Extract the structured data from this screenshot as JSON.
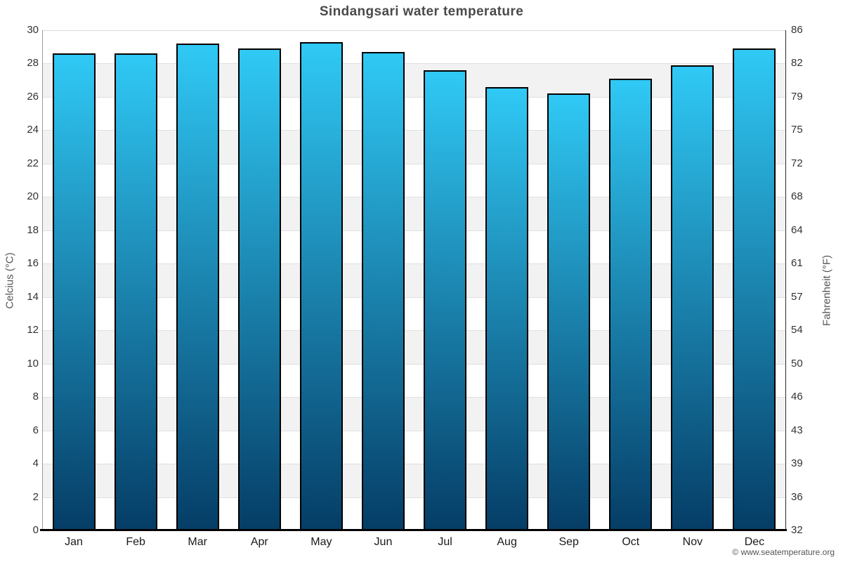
{
  "title": "Sindangsari water temperature",
  "watermark": "© www.seatemperature.org",
  "chart_data": {
    "type": "bar",
    "title": "Sindangsari water temperature",
    "categories": [
      "Jan",
      "Feb",
      "Mar",
      "Apr",
      "May",
      "Jun",
      "Jul",
      "Aug",
      "Sep",
      "Oct",
      "Nov",
      "Dec"
    ],
    "values": [
      28.6,
      28.6,
      29.2,
      28.9,
      29.3,
      28.7,
      27.6,
      26.6,
      26.2,
      27.1,
      27.9,
      28.9
    ],
    "xlabel": "",
    "ylabel_left": "Celcius (°C)",
    "ylabel_right": "Fahrenheit (°F)",
    "ylim_left": [
      0,
      30
    ],
    "yticks_left": [
      30,
      28,
      26,
      24,
      22,
      20,
      18,
      16,
      14,
      12,
      10,
      8,
      6,
      4,
      2,
      0
    ],
    "yticks_right": [
      86,
      82,
      79,
      75,
      72,
      68,
      64,
      61,
      57,
      54,
      50,
      46,
      43,
      39,
      36,
      32
    ],
    "grid": "horizontal-bands-alternating",
    "legend": "none",
    "colors": {
      "bar_gradient_top": "#30c9f5",
      "bar_gradient_bottom": "#053d66",
      "bar_border": "#000000",
      "band_gray": "#f2f2f2",
      "band_white": "#ffffff",
      "gridline": "#e0e0e0",
      "title_text": "#4a4a4a",
      "tick_text": "#333333",
      "axis_title_text": "#555555"
    }
  }
}
